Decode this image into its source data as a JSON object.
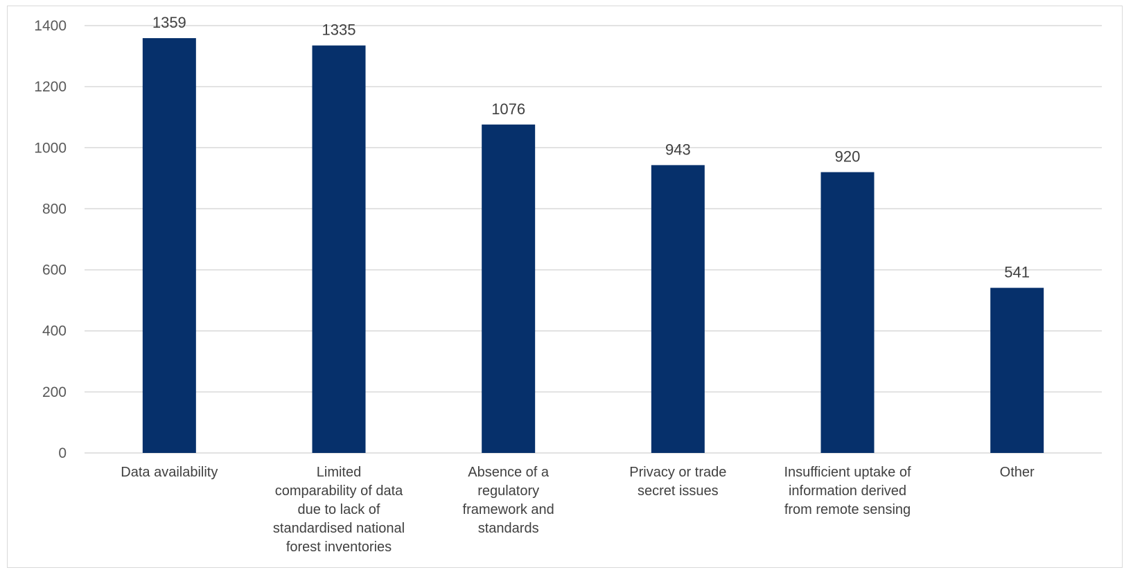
{
  "chart_data": {
    "type": "bar",
    "title": "",
    "xlabel": "",
    "ylabel": "",
    "categories": [
      [
        "Data availability"
      ],
      [
        "Limited",
        "comparability of data",
        "due to lack of",
        "standardised national",
        "forest inventories"
      ],
      [
        "Absence of a",
        "regulatory",
        "framework and",
        "standards"
      ],
      [
        "Privacy or trade",
        "secret issues"
      ],
      [
        "Insufficient uptake of",
        "information derived",
        "from remote sensing"
      ],
      [
        "Other"
      ]
    ],
    "values": [
      1359,
      1335,
      1076,
      943,
      920,
      541
    ],
    "data_labels": [
      "1359",
      "1335",
      "1076",
      "943",
      "920",
      "541"
    ],
    "ylim": [
      0,
      1400
    ],
    "yticks": [
      0,
      200,
      400,
      600,
      800,
      1000,
      1200,
      1400
    ],
    "grid": true,
    "legend": "none",
    "colors": {
      "bar": "#06306b",
      "grid": "#d9d9d9",
      "frame": "#d9d9d9"
    }
  }
}
